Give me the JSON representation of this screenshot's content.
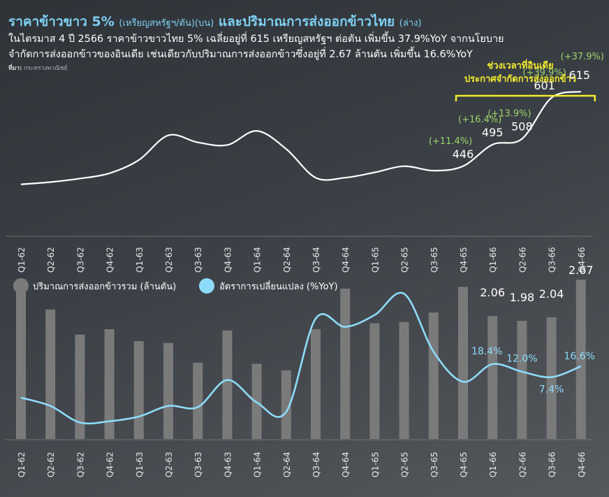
{
  "header": {
    "title_main": "ราคาข้าวขาว 5%",
    "title_unit": "(เหรียญสหรัฐฯ/ตัน)",
    "title_pos1": "(บน)",
    "title_mid": "และปริมาณการส่งออกข้าวไทย",
    "title_pos2": "(ล่าง)",
    "subtitle_line1": "ในไตรมาส 4 ปี 2566 ราคาข้าวขาวไทย 5% เฉลี่ยอยู่ที่ 615 เหรียญสหรัฐฯ ต่อตัน เพิ่มขึ้น 37.9%YoY จากนโยบาย",
    "subtitle_line2": "จำกัดการส่งออกข้าวของอินเดีย เช่นเดียวกับปริมาณการส่งออกข้าวซึ่งอยู่ที่ 2.67 ล้านตัน เพิ่มขึ้น 16.6%YoY",
    "source_label": "ที่มา:",
    "source_text": "กระทรวงพาณิชย์"
  },
  "colors": {
    "accent": "#7fd0f2",
    "highlight": "#f2ec2e",
    "growth": "#9ed36b",
    "bar": "#7a7a7a",
    "line_top": "#ffffff",
    "line_bottom": "#8edcfb"
  },
  "chart_data": [
    {
      "type": "line",
      "categories": [
        "Q1-62",
        "Q2-62",
        "Q3-62",
        "Q4-62",
        "Q1-63",
        "Q2-63",
        "Q3-63",
        "Q4-63",
        "Q1-64",
        "Q2-64",
        "Q3-64",
        "Q4-64",
        "Q1-65",
        "Q2-65",
        "Q3-65",
        "Q4-65",
        "Q1-66",
        "Q2-66",
        "Q3-66",
        "Q4-66"
      ],
      "series": [
        {
          "values": [
            405,
            410,
            418,
            430,
            460,
            516,
            500,
            494,
            526,
            485,
            420,
            420,
            432,
            446,
            436,
            446,
            495,
            508,
            601,
            615
          ]
        }
      ],
      "data_labels": [
        {
          "index": 15,
          "value": "446",
          "growth": "(+11.4%)"
        },
        {
          "index": 16,
          "value": "495",
          "growth": "(+16.4%)"
        },
        {
          "index": 17,
          "value": "508",
          "growth": "(+13.9%)"
        },
        {
          "index": 18,
          "value": "601",
          "growth": "(+39.9%)"
        },
        {
          "index": 19,
          "value": "615",
          "growth": "(+37.9%)"
        }
      ],
      "annotation": {
        "line1": "ช่วงเวลาที่อินเดีย",
        "line2": "ประกาศจำกัดการส่งออกข้าว",
        "from_index": 15,
        "to_index": 19
      },
      "ylim": [
        300,
        680
      ]
    },
    {
      "type": "bar",
      "categories": [
        "Q1-62",
        "Q2-62",
        "Q3-62",
        "Q4-62",
        "Q1-63",
        "Q2-63",
        "Q3-63",
        "Q4-63",
        "Q1-64",
        "Q2-64",
        "Q3-64",
        "Q4-64",
        "Q1-65",
        "Q2-65",
        "Q3-65",
        "Q4-65",
        "Q1-66",
        "Q2-66",
        "Q3-66",
        "Q4-66"
      ],
      "series": [
        {
          "name": "ปริมาณการส่งออกข้าวรวม (ล้านตัน)",
          "type": "bar",
          "values": [
            2.68,
            2.17,
            1.75,
            1.84,
            1.64,
            1.61,
            1.28,
            1.82,
            1.26,
            1.15,
            1.84,
            2.52,
            1.94,
            1.96,
            2.12,
            2.55,
            2.06,
            1.98,
            2.04,
            2.67
          ]
        },
        {
          "name": "อัตราการเปลี่ยนแปลง (%YoY)",
          "type": "line",
          "values": [
            -10,
            -17,
            -31,
            -30,
            -26,
            -17,
            -18,
            5,
            -14,
            -22,
            57,
            50,
            60,
            78,
            29,
            3.5,
            18.4,
            12.0,
            7.4,
            16.6
          ]
        }
      ],
      "bar_labels": [
        {
          "index": 16,
          "value": "2.06"
        },
        {
          "index": 17,
          "value": "1.98"
        },
        {
          "index": 18,
          "value": "2.04"
        },
        {
          "index": 19,
          "value": "2.67"
        }
      ],
      "line_labels": [
        {
          "index": 16,
          "value": "18.4%"
        },
        {
          "index": 17,
          "value": "12.0%"
        },
        {
          "index": 18,
          "value": "7.4%"
        },
        {
          "index": 19,
          "value": "16.6%"
        }
      ],
      "ylim_bar": [
        0,
        3.0
      ],
      "ylim_line": [
        -45,
        90
      ]
    }
  ]
}
